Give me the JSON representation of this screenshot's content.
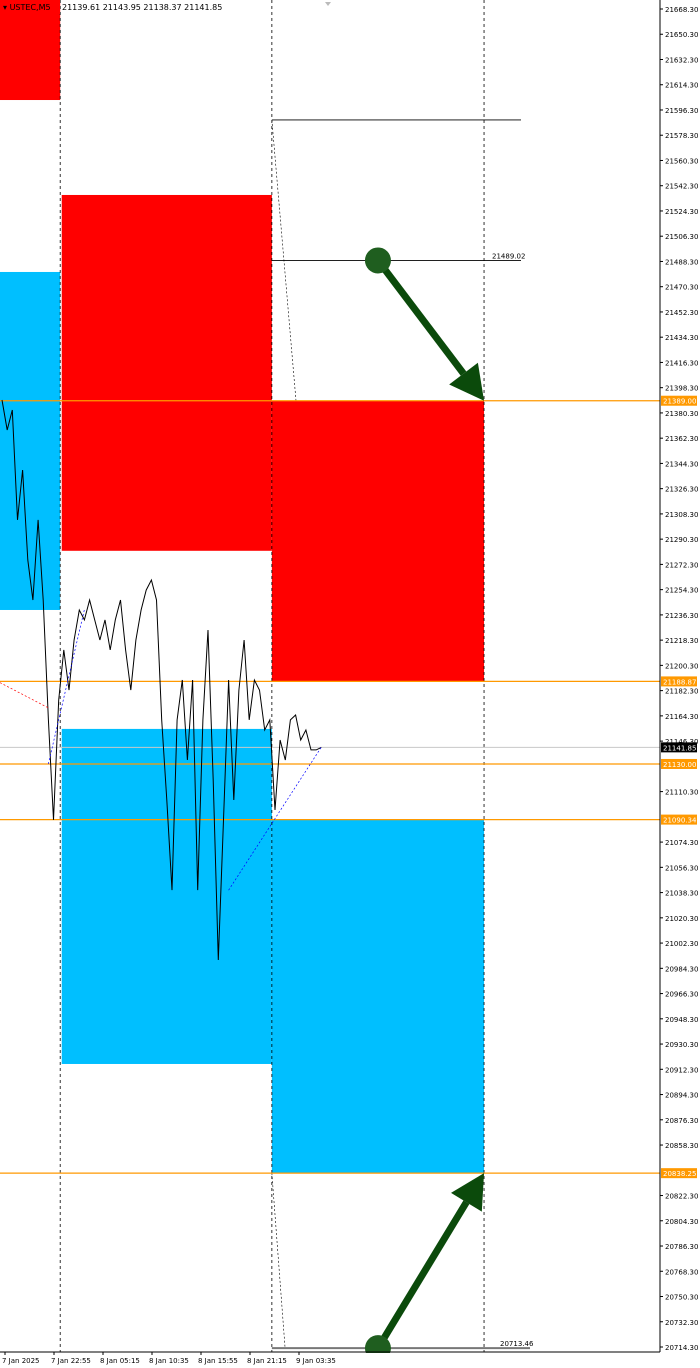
{
  "header": {
    "symbol": "USTEC,M5",
    "ohlc": "21139.61 21143.95 21138.37 21141.85"
  },
  "colors": {
    "supply": "#ff0000",
    "demand": "#00bfff",
    "level": "#ff9900",
    "arrow": "#0b4a0b",
    "price": "#000000"
  },
  "chart_data": {
    "type": "line",
    "title": "",
    "ylim": [
      20714.3,
      21668.3
    ],
    "y_ticks": [
      "21668.30",
      "21650.30",
      "21632.30",
      "21614.30",
      "21596.30",
      "21578.30",
      "21560.30",
      "21542.30",
      "21524.30",
      "21506.30",
      "21488.30",
      "21470.30",
      "21452.30",
      "21434.30",
      "21416.30",
      "21398.30",
      "21380.30",
      "21362.30",
      "21344.30",
      "21326.30",
      "21308.30",
      "21290.30",
      "21272.30",
      "21254.30",
      "21236.30",
      "21218.30",
      "21200.30",
      "21182.30",
      "21164.30",
      "21146.30",
      "21110.30",
      "21074.30",
      "21056.30",
      "21038.30",
      "21020.30",
      "21002.30",
      "20984.30",
      "20966.30",
      "20948.30",
      "20930.30",
      "20912.30",
      "20894.30",
      "20876.30",
      "20858.30",
      "20822.30",
      "20804.30",
      "20786.30",
      "20768.30",
      "20750.30",
      "20732.30",
      "20714.30"
    ],
    "x_ticks": [
      "7 Jan 2025",
      "7 Jan 22:55",
      "8 Jan 05:15",
      "8 Jan 10:35",
      "8 Jan 15:55",
      "8 Jan 21:15",
      "9 Jan 03:35"
    ],
    "series": [
      {
        "values": [
          21389.5,
          21368.1,
          21382.4,
          21304,
          21339.6,
          21275.4,
          21246.9,
          21304,
          21246.9,
          21161.4,
          21090.1,
          21175.6,
          21211.3,
          21182.7,
          21218.4,
          21239.8,
          21232.7,
          21246.9,
          21232.7,
          21218.4,
          21232.7,
          21211.3,
          21232.7,
          21246.9,
          21211.3,
          21182.7,
          21218.4,
          21239.8,
          21254,
          21261.2,
          21246.9,
          21161.4,
          21104.3,
          21040.1,
          21161.4,
          21189.9,
          21132.8,
          21189.9,
          21040.1,
          21161.4,
          21225.5,
          21118.6,
          20990.2,
          21090.1,
          21189.9,
          21104.3,
          21182.7,
          21218.4,
          21161.4,
          21189.9,
          21182.7,
          21154.2,
          21161.4,
          21097.2,
          21147.1,
          21132.8,
          21161.4,
          21164.9,
          21147.1,
          21154.2,
          21140,
          21140,
          21141.85
        ]
      }
    ],
    "zones": [
      {
        "kind": "supply",
        "x0": -1,
        "x1": 11.3,
        "top": 21690,
        "bottom": 21603.4
      },
      {
        "kind": "demand",
        "x0": -1,
        "x1": 11.3,
        "top": 21480.8,
        "bottom": 21239.8
      },
      {
        "kind": "supply",
        "x0": 11.6,
        "x1": 52.4,
        "top": 21535.7,
        "bottom": 21282
      },
      {
        "kind": "demand",
        "x0": 11.6,
        "x1": 52.4,
        "top": 21155,
        "bottom": 20916.1
      },
      {
        "kind": "supply",
        "x0": 52.4,
        "x1": 93.6,
        "top": 21389.0,
        "bottom": 21188.87
      },
      {
        "kind": "demand",
        "x0": 52.4,
        "x1": 93.6,
        "top": 21090.34,
        "bottom": 20838.25
      }
    ],
    "levels": [
      {
        "price": 21389.0,
        "label": "21389.00"
      },
      {
        "price": 21188.87,
        "label": "21188.87"
      },
      {
        "price": 21130.0,
        "label": "21130.00"
      },
      {
        "price": 21090.34,
        "label": "21090.34"
      },
      {
        "price": 20838.25,
        "label": "20838.25"
      }
    ],
    "current_price": {
      "price": 21141.85,
      "label": "21141.85"
    },
    "target_lines": [
      {
        "price": 21589.2,
        "label": ""
      },
      {
        "price": 21489.02,
        "label": "21489.02"
      },
      {
        "price": 20713.46,
        "label": "20713.46"
      }
    ],
    "vlines": [
      11.3,
      52.4,
      93.6
    ],
    "arrows": [
      {
        "from": [
          73,
          21489.02
        ],
        "to": [
          93.6,
          21389.0
        ],
        "direction": "down"
      },
      {
        "from": [
          73,
          20713.46
        ],
        "to": [
          93.6,
          20838.25
        ],
        "direction": "up"
      }
    ]
  }
}
